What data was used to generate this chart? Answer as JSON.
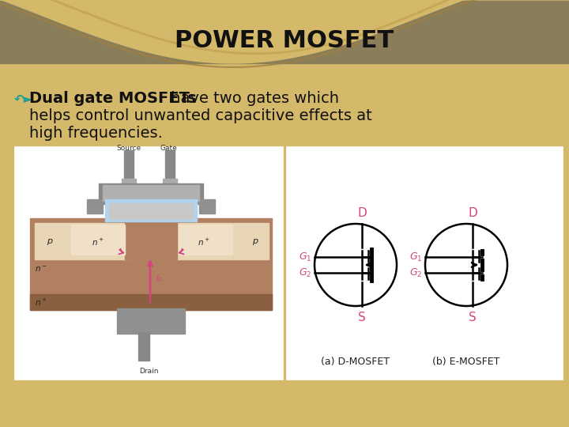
{
  "title": "POWER MOSFET",
  "title_fontsize": 22,
  "bg_top_color": "#9e9070",
  "bg_bottom_color": "#d4b96a",
  "wave_fill_color": "#d4b96a",
  "text_fontsize": 14,
  "bold_text": "Dual gate MOSFETs",
  "normal_text_line1": " have two gates which",
  "normal_text_line2": "helps control unwanted capacitive effects at",
  "normal_text_line3": "high frequencies.",
  "magenta": "#d44480",
  "teal": "#20a090"
}
